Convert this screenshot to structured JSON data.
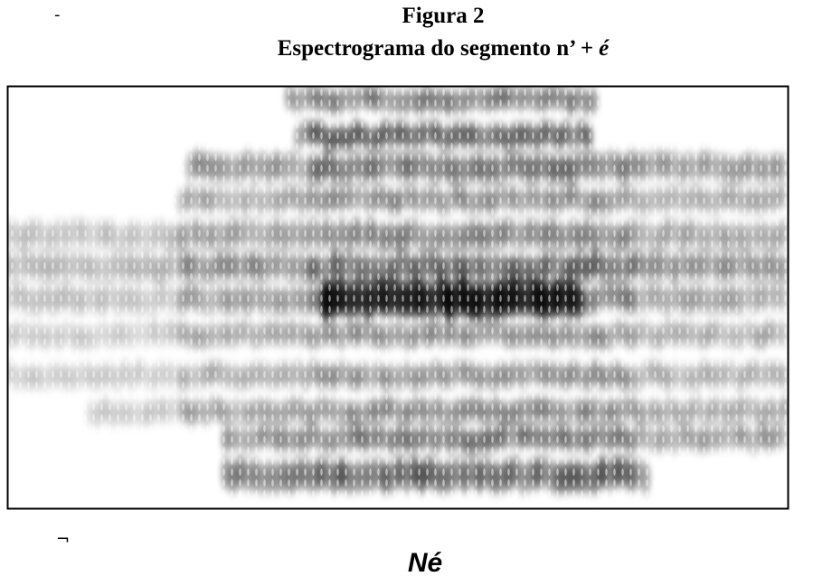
{
  "figure": {
    "label": "Figura 2",
    "title_prefix": "Espectrograma do segmento n’ +",
    "title_italic": "é",
    "caption": "Né"
  }
}
